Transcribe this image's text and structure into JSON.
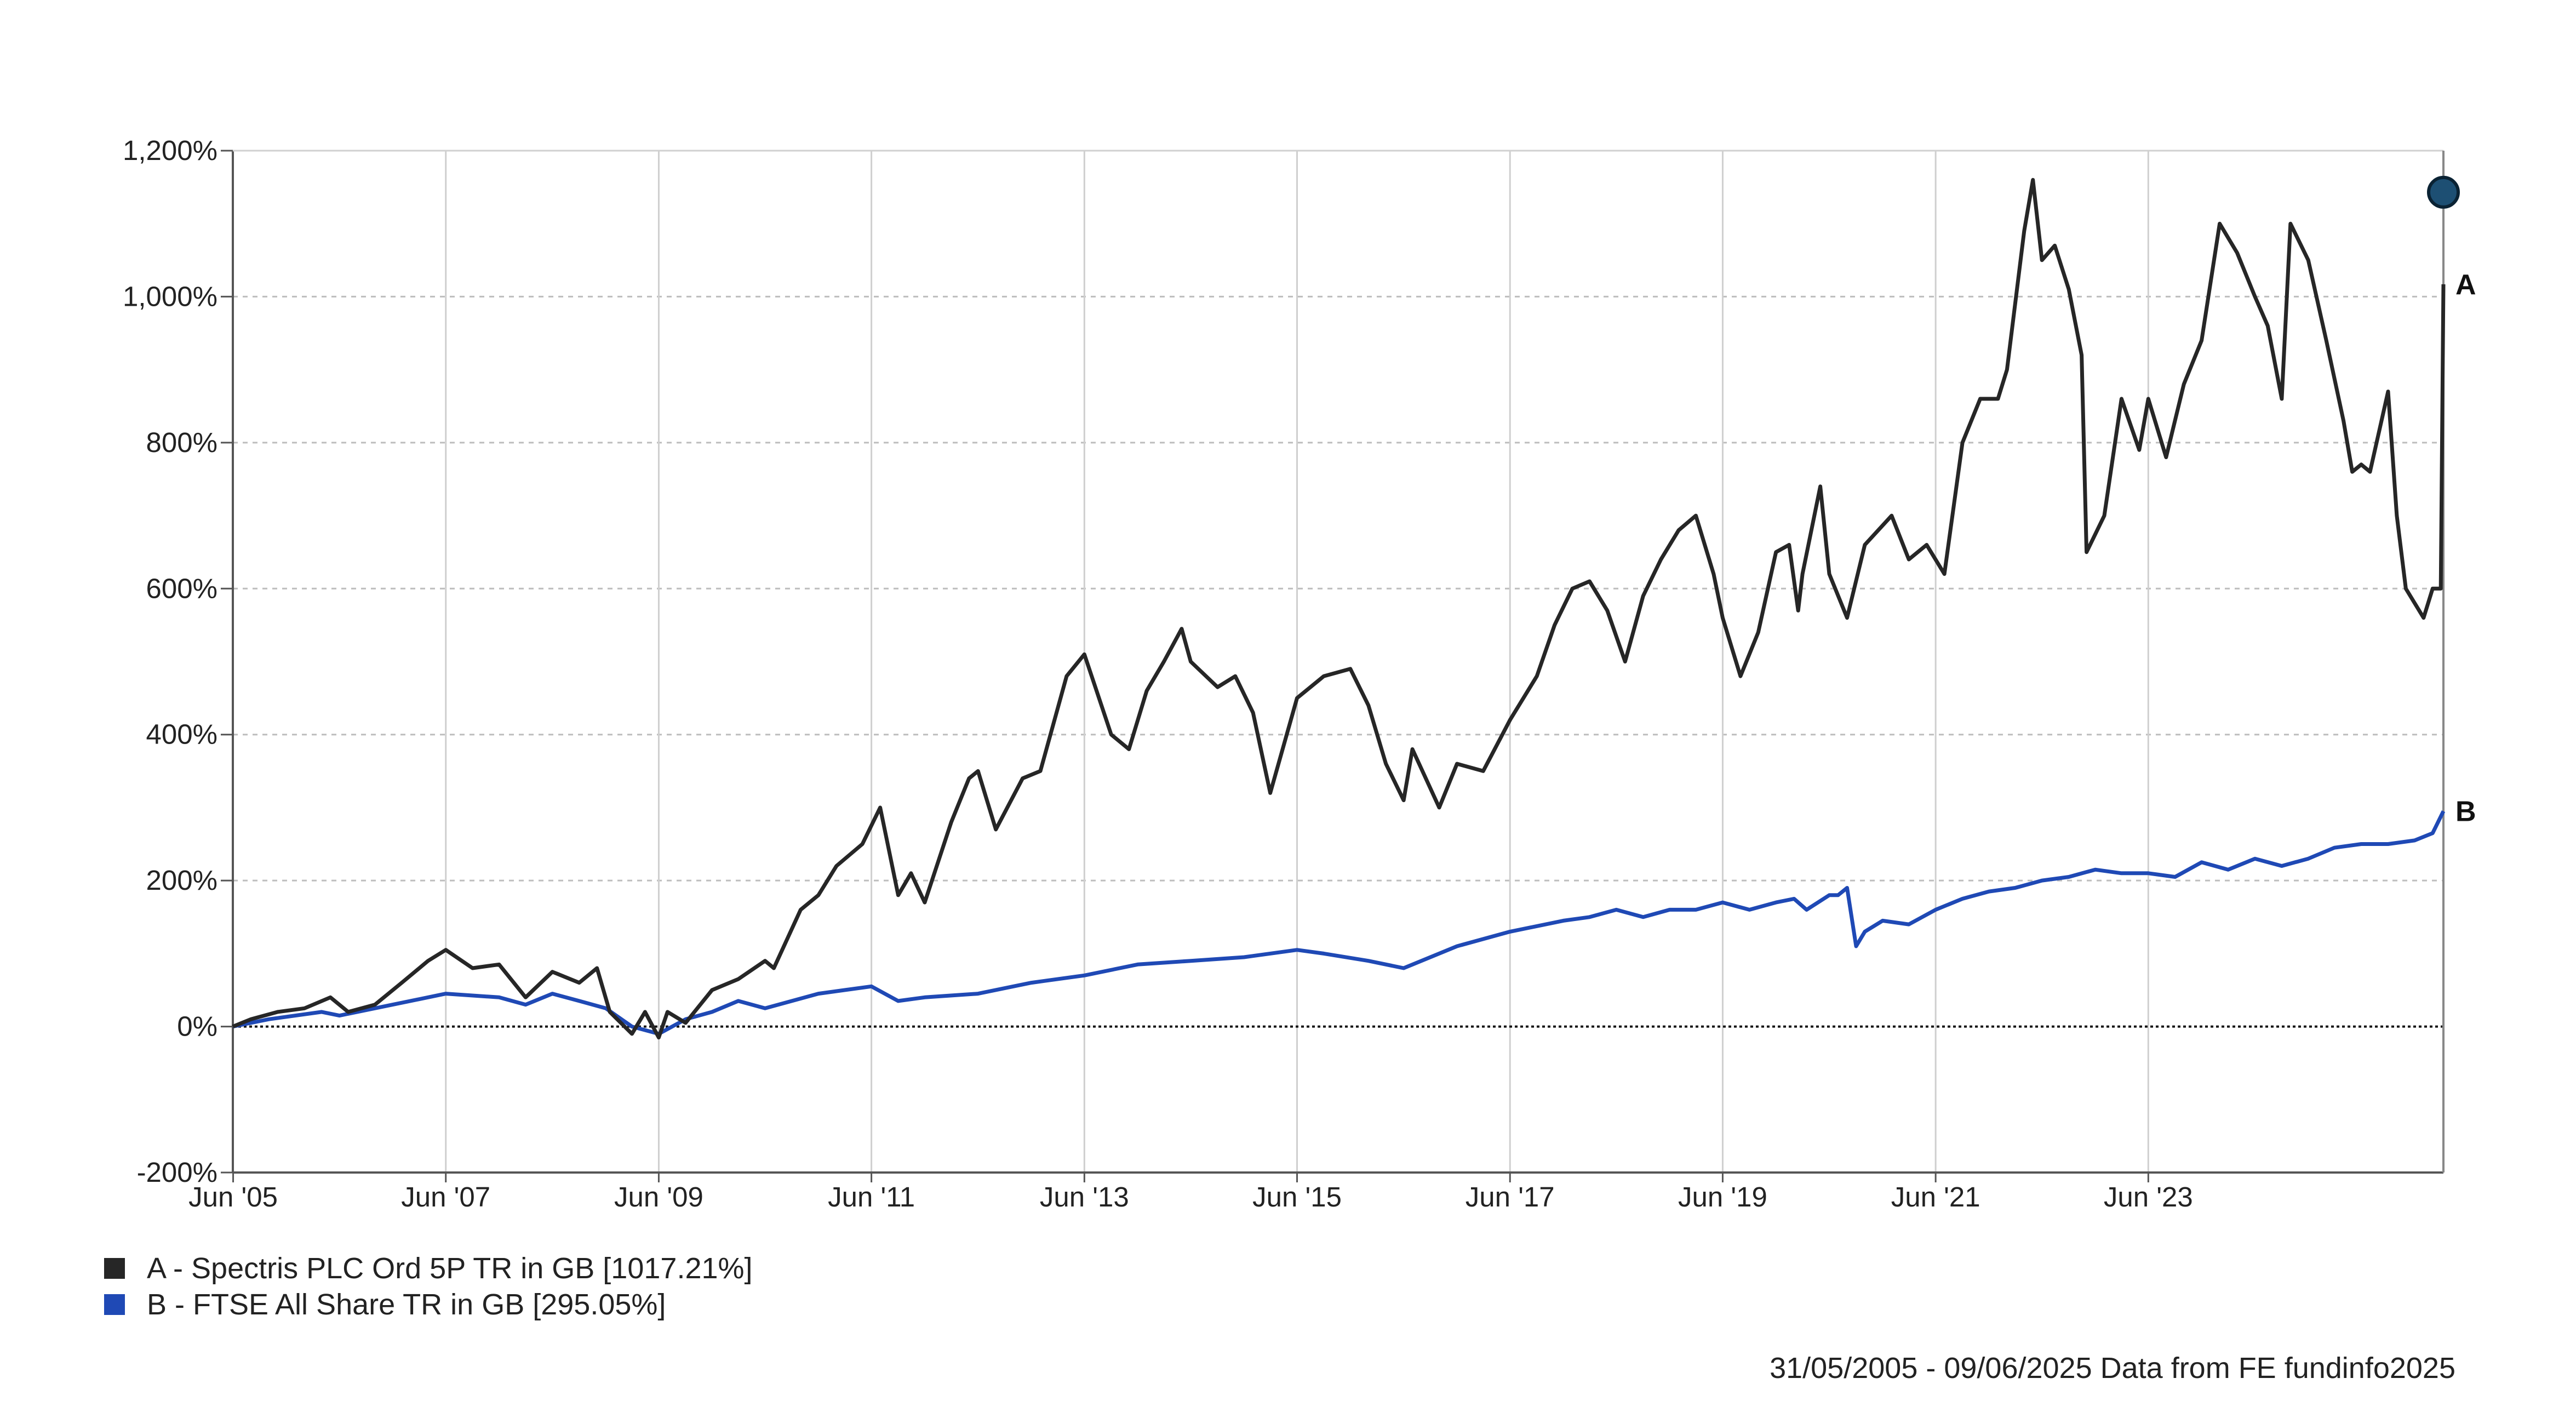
{
  "chart_data": {
    "type": "line",
    "x_range": [
      "31/05/2005",
      "09/06/2025"
    ],
    "x_ticks": [
      "Jun '05",
      "Jun '07",
      "Jun '09",
      "Jun '11",
      "Jun '13",
      "Jun '15",
      "Jun '17",
      "Jun '19",
      "Jun '21",
      "Jun '23"
    ],
    "y_ticks": [
      "1,200%",
      "1,000%",
      "800%",
      "600%",
      "400%",
      "200%",
      "0%",
      "-200%"
    ],
    "ylim": [
      -200,
      1200
    ],
    "grid": true,
    "legend_position": "bottom-left",
    "series": [
      {
        "id": "A",
        "name": "A - Spectris PLC Ord 5P TR in GB [1017.21%]",
        "end_label": "A",
        "color": "#262626",
        "points": [
          [
            "2005-05-31",
            0
          ],
          [
            "2005-08-01",
            10
          ],
          [
            "2005-11-01",
            20
          ],
          [
            "2006-02-01",
            25
          ],
          [
            "2006-05-01",
            40
          ],
          [
            "2006-07-01",
            20
          ],
          [
            "2006-10-01",
            30
          ],
          [
            "2007-01-01",
            60
          ],
          [
            "2007-04-01",
            90
          ],
          [
            "2007-06-01",
            105
          ],
          [
            "2007-09-01",
            80
          ],
          [
            "2007-12-01",
            85
          ],
          [
            "2008-03-01",
            40
          ],
          [
            "2008-06-01",
            75
          ],
          [
            "2008-09-01",
            60
          ],
          [
            "2008-11-01",
            80
          ],
          [
            "2008-12-15",
            20
          ],
          [
            "2009-03-01",
            -10
          ],
          [
            "2009-04-15",
            20
          ],
          [
            "2009-06-01",
            -15
          ],
          [
            "2009-07-01",
            20
          ],
          [
            "2009-09-01",
            5
          ],
          [
            "2009-12-01",
            50
          ],
          [
            "2010-03-01",
            65
          ],
          [
            "2010-06-01",
            90
          ],
          [
            "2010-07-01",
            80
          ],
          [
            "2010-10-01",
            160
          ],
          [
            "2010-12-01",
            180
          ],
          [
            "2011-02-01",
            220
          ],
          [
            "2011-05-01",
            250
          ],
          [
            "2011-07-01",
            300
          ],
          [
            "2011-09-01",
            180
          ],
          [
            "2011-10-15",
            210
          ],
          [
            "2011-12-01",
            170
          ],
          [
            "2012-03-01",
            280
          ],
          [
            "2012-05-01",
            340
          ],
          [
            "2012-06-01",
            350
          ],
          [
            "2012-08-01",
            270
          ],
          [
            "2012-11-01",
            340
          ],
          [
            "2013-01-01",
            350
          ],
          [
            "2013-04-01",
            480
          ],
          [
            "2013-06-01",
            510
          ],
          [
            "2013-09-01",
            400
          ],
          [
            "2013-11-01",
            380
          ],
          [
            "2014-01-01",
            460
          ],
          [
            "2014-03-01",
            500
          ],
          [
            "2014-05-01",
            545
          ],
          [
            "2014-06-01",
            500
          ],
          [
            "2014-09-01",
            465
          ],
          [
            "2014-11-01",
            480
          ],
          [
            "2015-01-01",
            430
          ],
          [
            "2015-03-01",
            320
          ],
          [
            "2015-06-01",
            450
          ],
          [
            "2015-09-01",
            480
          ],
          [
            "2015-12-01",
            490
          ],
          [
            "2016-02-01",
            440
          ],
          [
            "2016-04-01",
            360
          ],
          [
            "2016-06-01",
            310
          ],
          [
            "2016-07-01",
            380
          ],
          [
            "2016-10-01",
            300
          ],
          [
            "2016-12-01",
            360
          ],
          [
            "2017-03-01",
            350
          ],
          [
            "2017-06-01",
            420
          ],
          [
            "2017-09-01",
            480
          ],
          [
            "2017-11-01",
            550
          ],
          [
            "2018-01-01",
            600
          ],
          [
            "2018-03-01",
            610
          ],
          [
            "2018-05-01",
            570
          ],
          [
            "2018-07-01",
            500
          ],
          [
            "2018-09-01",
            590
          ],
          [
            "2018-11-01",
            640
          ],
          [
            "2019-01-01",
            680
          ],
          [
            "2019-03-01",
            700
          ],
          [
            "2019-05-01",
            620
          ],
          [
            "2019-06-01",
            560
          ],
          [
            "2019-08-01",
            480
          ],
          [
            "2019-10-01",
            540
          ],
          [
            "2019-12-01",
            650
          ],
          [
            "2020-01-15",
            660
          ],
          [
            "2020-02-15",
            570
          ],
          [
            "2020-03-01",
            620
          ],
          [
            "2020-05-01",
            740
          ],
          [
            "2020-06-01",
            620
          ],
          [
            "2020-08-01",
            560
          ],
          [
            "2020-10-01",
            660
          ],
          [
            "2021-01-01",
            700
          ],
          [
            "2021-03-01",
            640
          ],
          [
            "2021-05-01",
            660
          ],
          [
            "2021-07-01",
            620
          ],
          [
            "2021-09-01",
            800
          ],
          [
            "2021-11-01",
            860
          ],
          [
            "2022-01-01",
            860
          ],
          [
            "2022-02-01",
            900
          ],
          [
            "2022-04-01",
            1090
          ],
          [
            "2022-05-01",
            1160
          ],
          [
            "2022-06-01",
            1050
          ],
          [
            "2022-07-15",
            1070
          ],
          [
            "2022-09-01",
            1010
          ],
          [
            "2022-10-15",
            920
          ],
          [
            "2022-11-01",
            650
          ],
          [
            "2023-01-01",
            700
          ],
          [
            "2023-03-01",
            860
          ],
          [
            "2023-05-01",
            790
          ],
          [
            "2023-06-01",
            860
          ],
          [
            "2023-08-01",
            780
          ],
          [
            "2023-10-01",
            880
          ],
          [
            "2023-12-01",
            940
          ],
          [
            "2024-02-01",
            1100
          ],
          [
            "2024-04-01",
            1060
          ],
          [
            "2024-06-01",
            1000
          ],
          [
            "2024-07-15",
            960
          ],
          [
            "2024-09-01",
            860
          ],
          [
            "2024-10-01",
            1100
          ],
          [
            "2024-12-01",
            1050
          ],
          [
            "2025-02-01",
            940
          ],
          [
            "2025-04-01",
            830
          ],
          [
            "2025-05-01",
            760
          ],
          [
            "2025-06-01",
            770
          ],
          [
            "2025-07-01",
            760
          ],
          [
            "2025-09-01",
            870
          ],
          [
            "2025-10-01",
            700
          ],
          [
            "2025-11-01",
            600
          ],
          [
            "2026-01-01",
            560
          ],
          [
            "2026-02-01",
            600
          ],
          [
            "2026-03-01",
            600
          ],
          [
            "2026-03-10",
            1017
          ]
        ]
      },
      {
        "id": "B",
        "name": "B - FTSE All Share TR in GB [295.05%]",
        "end_label": "B",
        "color": "#1f49b5",
        "points": [
          [
            "2005-05-31",
            0
          ],
          [
            "2005-10-01",
            10
          ],
          [
            "2006-04-01",
            20
          ],
          [
            "2006-06-01",
            15
          ],
          [
            "2006-12-01",
            30
          ],
          [
            "2007-06-01",
            45
          ],
          [
            "2007-12-01",
            40
          ],
          [
            "2008-03-01",
            30
          ],
          [
            "2008-06-01",
            45
          ],
          [
            "2008-09-01",
            35
          ],
          [
            "2008-12-01",
            25
          ],
          [
            "2009-03-01",
            0
          ],
          [
            "2009-06-01",
            -10
          ],
          [
            "2009-09-01",
            10
          ],
          [
            "2009-12-01",
            20
          ],
          [
            "2010-03-01",
            35
          ],
          [
            "2010-06-01",
            25
          ],
          [
            "2010-09-01",
            35
          ],
          [
            "2010-12-01",
            45
          ],
          [
            "2011-03-01",
            50
          ],
          [
            "2011-06-01",
            55
          ],
          [
            "2011-09-01",
            35
          ],
          [
            "2011-12-01",
            40
          ],
          [
            "2012-06-01",
            45
          ],
          [
            "2012-12-01",
            60
          ],
          [
            "2013-06-01",
            70
          ],
          [
            "2013-12-01",
            85
          ],
          [
            "2014-06-01",
            90
          ],
          [
            "2014-12-01",
            95
          ],
          [
            "2015-06-01",
            105
          ],
          [
            "2015-09-01",
            100
          ],
          [
            "2016-02-01",
            90
          ],
          [
            "2016-06-01",
            80
          ],
          [
            "2016-12-01",
            110
          ],
          [
            "2017-06-01",
            130
          ],
          [
            "2017-12-01",
            145
          ],
          [
            "2018-03-01",
            150
          ],
          [
            "2018-06-01",
            160
          ],
          [
            "2018-09-01",
            150
          ],
          [
            "2018-12-01",
            160
          ],
          [
            "2019-03-01",
            160
          ],
          [
            "2019-06-01",
            170
          ],
          [
            "2019-09-01",
            160
          ],
          [
            "2019-12-01",
            170
          ],
          [
            "2020-02-01",
            175
          ],
          [
            "2020-03-15",
            160
          ],
          [
            "2020-06-01",
            180
          ],
          [
            "2020-07-01",
            180
          ],
          [
            "2020-08-01",
            190
          ],
          [
            "2020-09-01",
            110
          ],
          [
            "2020-10-01",
            130
          ],
          [
            "2020-12-01",
            145
          ],
          [
            "2021-03-01",
            140
          ],
          [
            "2021-06-01",
            160
          ],
          [
            "2021-09-01",
            175
          ],
          [
            "2021-12-01",
            185
          ],
          [
            "2022-03-01",
            190
          ],
          [
            "2022-06-01",
            200
          ],
          [
            "2022-09-01",
            205
          ],
          [
            "2022-12-01",
            215
          ],
          [
            "2023-03-01",
            210
          ],
          [
            "2023-06-01",
            210
          ],
          [
            "2023-09-01",
            205
          ],
          [
            "2023-12-01",
            225
          ],
          [
            "2024-03-01",
            215
          ],
          [
            "2024-06-01",
            230
          ],
          [
            "2024-09-01",
            220
          ],
          [
            "2024-12-01",
            230
          ],
          [
            "2025-03-01",
            245
          ],
          [
            "2025-06-01",
            250
          ],
          [
            "2025-09-01",
            250
          ],
          [
            "2025-12-01",
            255
          ],
          [
            "2026-02-01",
            265
          ],
          [
            "2026-03-10",
            295
          ]
        ]
      }
    ],
    "markers": [
      {
        "label": "current-marker",
        "date": "2026-03-10",
        "value": 1143,
        "color": "#1d4f73"
      }
    ]
  },
  "legend": {
    "item_a": "A - Spectris PLC Ord 5P TR in GB [1017.21%]",
    "item_b": "B - FTSE All Share TR in GB [295.05%]",
    "color_a": "#262626",
    "color_b": "#1f49b5"
  },
  "footer": {
    "text": "31/05/2005 - 09/06/2025 Data from FE fundinfo2025"
  }
}
